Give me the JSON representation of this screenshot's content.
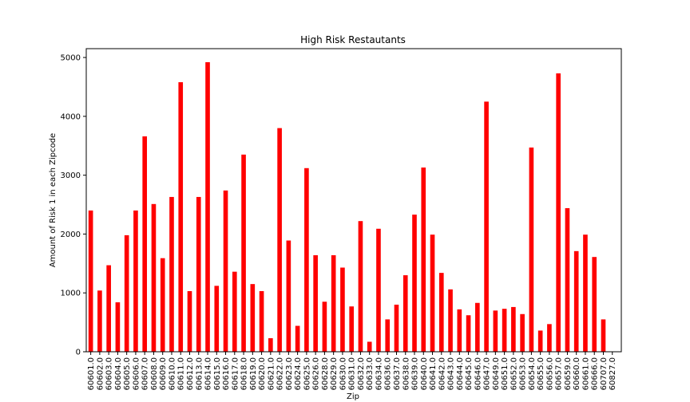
{
  "chart_data": {
    "type": "bar",
    "title": "High Risk Restautants",
    "xlabel": "Zip",
    "ylabel": "Amount of Risk 1 in each Zipcode",
    "ylim": [
      0,
      5150
    ],
    "yticks": [
      0,
      1000,
      2000,
      3000,
      4000,
      5000
    ],
    "grid": false,
    "legend": "none",
    "bar_color": "#ff0000",
    "categories": [
      "60601.0",
      "60602.0",
      "60603.0",
      "60604.0",
      "60605.0",
      "60606.0",
      "60607.0",
      "60608.0",
      "60609.0",
      "60610.0",
      "60611.0",
      "60612.0",
      "60613.0",
      "60614.0",
      "60615.0",
      "60616.0",
      "60617.0",
      "60618.0",
      "60619.0",
      "60620.0",
      "60621.0",
      "60622.0",
      "60623.0",
      "60624.0",
      "60625.0",
      "60626.0",
      "60628.0",
      "60629.0",
      "60630.0",
      "60631.0",
      "60632.0",
      "60633.0",
      "60634.0",
      "60636.0",
      "60637.0",
      "60638.0",
      "60639.0",
      "60640.0",
      "60641.0",
      "60642.0",
      "60643.0",
      "60644.0",
      "60645.0",
      "60646.0",
      "60647.0",
      "60649.0",
      "60651.0",
      "60652.0",
      "60653.0",
      "60654.0",
      "60655.0",
      "60656.0",
      "60657.0",
      "60659.0",
      "60660.0",
      "60661.0",
      "60666.0",
      "60707.0",
      "60827.0"
    ],
    "values": [
      2400,
      1040,
      1470,
      840,
      1980,
      2400,
      3660,
      2510,
      1590,
      2630,
      4580,
      1030,
      2630,
      4920,
      1120,
      2740,
      1360,
      3350,
      1150,
      1030,
      230,
      3800,
      1890,
      440,
      3120,
      1640,
      850,
      1640,
      1430,
      770,
      2220,
      170,
      2090,
      550,
      800,
      1300,
      2330,
      3130,
      1990,
      1340,
      1060,
      720,
      620,
      830,
      4250,
      700,
      730,
      760,
      640,
      3470,
      360,
      470,
      4730,
      2440,
      1710,
      1990,
      1610,
      550,
      0
    ]
  }
}
